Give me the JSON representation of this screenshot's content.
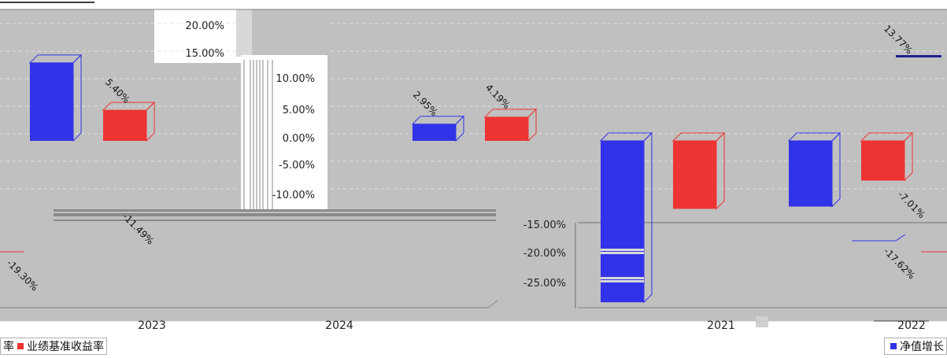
{
  "chart_data": {
    "type": "bar",
    "categories": [
      "2023",
      "2024",
      "2021",
      "2022"
    ],
    "series": [
      {
        "name": "净值增长率",
        "color": "#3232e8",
        "values": [
          null,
          2.95,
          null,
          13.77
        ]
      },
      {
        "name": "业绩基准收益率",
        "color": "#ee3333",
        "values": [
          5.4,
          4.19,
          null,
          -7.01
        ]
      }
    ],
    "partial_series_values": [
      -19.3,
      -11.49,
      -17.62
    ],
    "data_labels": [
      "5.40%",
      "-19.30%",
      "-11.49%",
      "2.95%",
      "4.19%",
      "13.77%",
      "-7.01%",
      "-17.62%"
    ],
    "y_ticks": [
      "20.00%",
      "15.00%",
      "10.00%",
      "5.00%",
      "0.00%",
      "-5.00%",
      "-10.00%",
      "-15.00%",
      "-20.00%",
      "-25.00%"
    ],
    "ylim": [
      -25,
      20
    ],
    "grid": true,
    "legend_position": "bottom"
  },
  "legend": {
    "left_tail": "率",
    "left_series": "业绩基准收益率",
    "right_series": "净值增长"
  },
  "colors": {
    "blue": "#3232e8",
    "red": "#ee3333",
    "plot_background": "#c0c0c0"
  }
}
